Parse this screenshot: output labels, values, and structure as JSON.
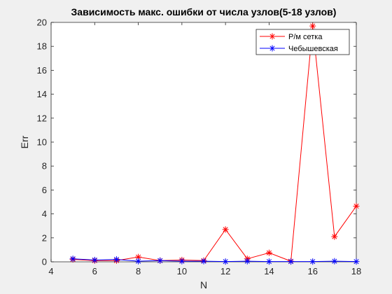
{
  "chart_data": {
    "type": "line",
    "title": "Зависимость макс. ошибки от числа узлов(5-18 узлов)",
    "xlabel": "N",
    "ylabel": "Err",
    "xlim": [
      4,
      18
    ],
    "ylim": [
      0,
      20
    ],
    "xticks": [
      "4",
      "6",
      "8",
      "10",
      "12",
      "14",
      "16",
      "18"
    ],
    "yticks": [
      "0",
      "2",
      "4",
      "6",
      "8",
      "10",
      "12",
      "14",
      "16",
      "18",
      "20"
    ],
    "grid": false,
    "legend_position": "top-right",
    "x": [
      5,
      6,
      7,
      8,
      9,
      10,
      11,
      12,
      13,
      14,
      15,
      16,
      17,
      18
    ],
    "series": [
      {
        "name": "Р/м сетка",
        "color": "#ff0000",
        "marker": "asterisk",
        "values": [
          0.2,
          0.1,
          0.1,
          0.4,
          0.1,
          0.15,
          0.1,
          2.7,
          0.25,
          0.75,
          0.05,
          19.7,
          2.1,
          4.65
        ]
      },
      {
        "name": "Чебышевская",
        "color": "#0000ff",
        "marker": "asterisk",
        "values": [
          0.25,
          0.15,
          0.2,
          0.05,
          0.1,
          0.05,
          0.05,
          0.02,
          0.05,
          0.02,
          0.02,
          0.02,
          0.05,
          0.02
        ]
      }
    ]
  }
}
